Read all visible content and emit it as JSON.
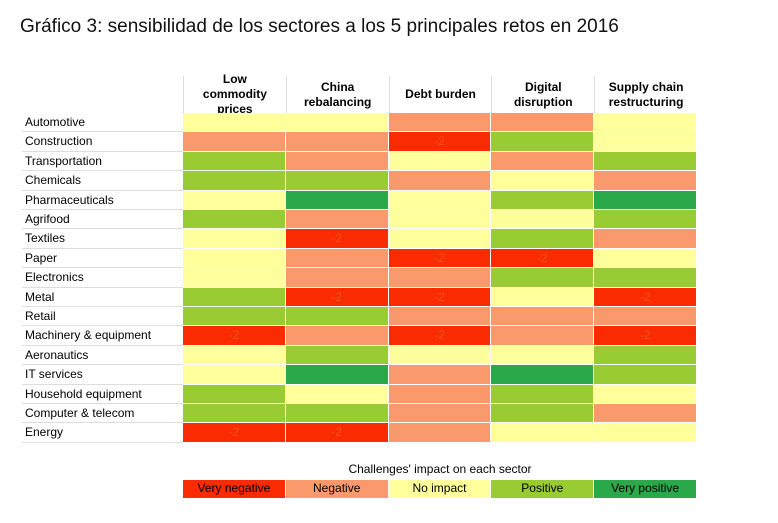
{
  "chart_data": {
    "type": "heatmap",
    "title": "Gráfico 3: sensibilidad de los sectores a los 5 principales retos en 2016",
    "columns": [
      "Low commodity prices",
      "China rebalancing",
      "Debt burden",
      "Digital disruption",
      "Supply chain restructuring"
    ],
    "rows": [
      "Automotive",
      "Construction",
      "Transportation",
      "Chemicals",
      "Pharmaceuticals",
      "Agrifood",
      "Textiles",
      "Paper",
      "Electronics",
      "Metal",
      "Retail",
      "Machinery & equipment",
      "Aeronautics",
      "IT services",
      "Household equipment",
      "Computer & telecom",
      "Energy"
    ],
    "values": [
      [
        0,
        0,
        -1,
        -1,
        0
      ],
      [
        -1,
        -1,
        -2,
        1,
        0
      ],
      [
        1,
        -1,
        0,
        -1,
        1
      ],
      [
        1,
        1,
        -1,
        0,
        -1
      ],
      [
        0,
        2,
        0,
        1,
        2
      ],
      [
        1,
        -1,
        0,
        0,
        1
      ],
      [
        0,
        -2,
        0,
        1,
        -1
      ],
      [
        0,
        -1,
        -2,
        -2,
        0
      ],
      [
        0,
        -1,
        -1,
        1,
        1
      ],
      [
        1,
        -2,
        -2,
        0,
        -2
      ],
      [
        1,
        1,
        -1,
        -1,
        -1
      ],
      [
        -2,
        -1,
        -2,
        -1,
        -2
      ],
      [
        0,
        1,
        0,
        0,
        1
      ],
      [
        0,
        2,
        -1,
        2,
        1
      ],
      [
        1,
        0,
        -1,
        1,
        0
      ],
      [
        1,
        1,
        -1,
        1,
        -1
      ],
      [
        -2,
        -2,
        -1,
        0,
        0
      ]
    ],
    "legend_title": "Challenges' impact on each sector",
    "levels": [
      {
        "value": -2,
        "label": "Very negative",
        "color": "#fb2b00",
        "label_color": "#e9541f"
      },
      {
        "value": -1,
        "label": "Negative",
        "color": "#fa9a6c",
        "label_color": "#fa9a6c"
      },
      {
        "value": 0,
        "label": "No impact",
        "color": "#ffff9c",
        "label_color": "#ffff9c"
      },
      {
        "value": 1,
        "label": "Positive",
        "color": "#99cc33",
        "label_color": "#99cc33"
      },
      {
        "value": 2,
        "label": "Very positive",
        "color": "#2aa84a",
        "label_color": "#2aa84a"
      }
    ]
  }
}
